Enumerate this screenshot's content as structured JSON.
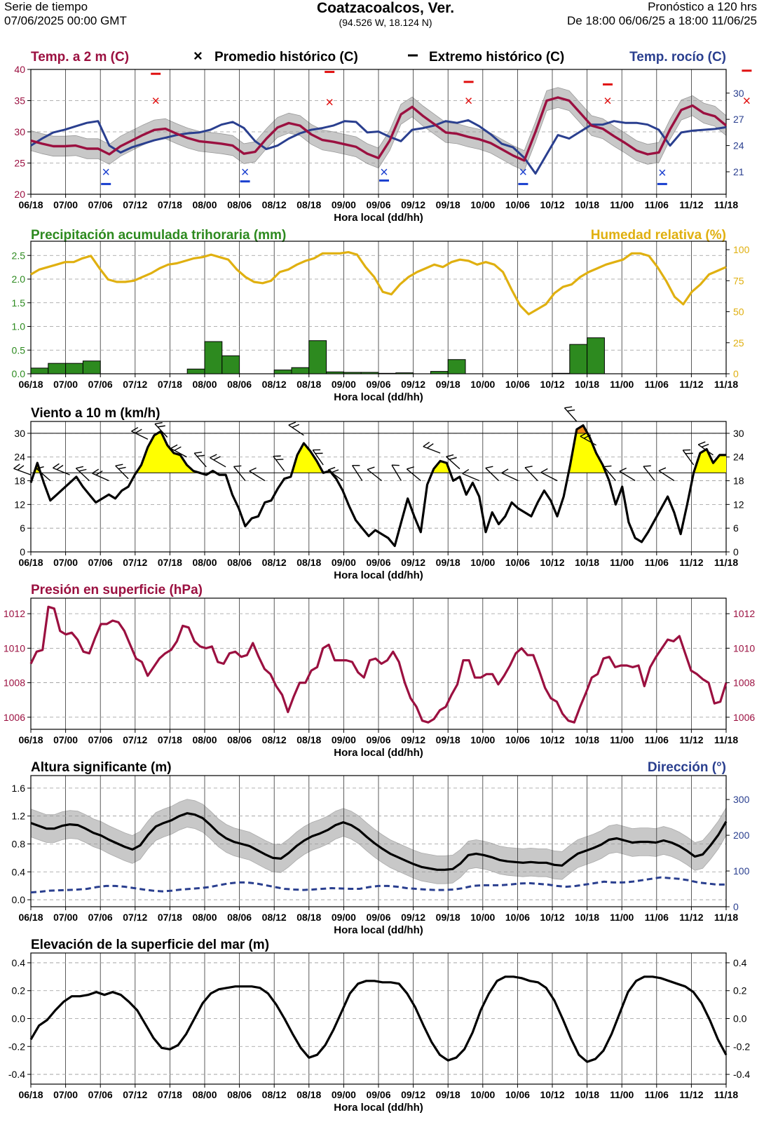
{
  "header": {
    "left_line1": "Serie de tiempo",
    "left_line2": "07/06/2025 00:00 GMT",
    "title": "Coatzacoalcos,  Ver.",
    "subtitle": "(94.526 W, 18.124 N)",
    "right_line1": "Pronóstico a 120 hrs",
    "right_line2": "De 18:00 06/06/25 a 18:00 11/06/25"
  },
  "x_axis": {
    "label": "Hora local (dd/hh)",
    "ticks": [
      "06/18",
      "07/00",
      "07/06",
      "07/12",
      "07/18",
      "08/00",
      "08/06",
      "08/12",
      "08/18",
      "09/00",
      "09/06",
      "09/12",
      "09/18",
      "10/00",
      "10/06",
      "10/12",
      "10/18",
      "11/00",
      "11/06",
      "11/12",
      "11/18"
    ]
  },
  "colors": {
    "temp": "#9b1040",
    "dew": "#2a3f8f",
    "rain": "#2d8a1f",
    "humidity": "#e0b010",
    "wind": "#000000",
    "wind_fill_yellow": "#ffff00",
    "wind_fill_orange": "#f08a1a",
    "pressure": "#9b1040",
    "wave": "#000000",
    "wave_dir": "#2a3f8f",
    "band": "#c8c8c8",
    "hist_max": "#e01010",
    "hist_min": "#1a3fcf"
  },
  "chart_data": [
    {
      "type": "line",
      "title": "Temp. a 2 m (C)",
      "legend": [
        "Promedio histórico (C)",
        "Extremo histórico (C)"
      ],
      "right_title": "Temp. rocío (C)",
      "ylim": [
        20,
        40
      ],
      "y_ticks": [
        "20",
        "25",
        "30",
        "35",
        "40"
      ],
      "y2lim": [
        18.43,
        32.71
      ],
      "y2_ticks": [
        "21",
        "24",
        "27",
        "30"
      ],
      "series": [
        {
          "name": "Temp. a 2 m (C)",
          "axis": "left",
          "values": [
            28.6,
            28.1,
            27.7,
            27.7,
            27.8,
            27.3,
            27.3,
            26.4,
            27.7,
            28.6,
            29.5,
            30.3,
            30.5,
            29.7,
            29.0,
            28.5,
            28.3,
            28.1,
            27.8,
            26.5,
            26.8,
            28.9,
            30.7,
            31.4,
            31.0,
            29.6,
            28.7,
            28.4,
            28.0,
            27.6,
            26.5,
            25.8,
            28.6,
            32.8,
            34.0,
            32.5,
            31.2,
            29.9,
            29.7,
            29.2,
            28.8,
            28.2,
            27.2,
            26.2,
            25.4,
            30.0,
            35.0,
            35.5,
            35.0,
            33.0,
            31.0,
            30.5,
            29.3,
            28.2,
            27.0,
            26.4,
            26.7,
            30.4,
            33.5,
            34.2,
            33.0,
            32.5,
            31.0
          ]
        },
        {
          "name": "Temp. rocío (C)",
          "axis": "right",
          "values": [
            24.0,
            24.8,
            25.5,
            25.8,
            26.2,
            26.6,
            26.8,
            24.0,
            23.2,
            23.8,
            24.2,
            24.6,
            24.9,
            25.2,
            25.4,
            25.5,
            25.8,
            26.4,
            26.7,
            26.0,
            24.5,
            23.6,
            24.0,
            24.8,
            25.4,
            25.8,
            26.0,
            26.3,
            26.8,
            26.7,
            25.5,
            25.6,
            25.0,
            24.5,
            25.8,
            26.0,
            26.3,
            26.8,
            26.6,
            26.9,
            26.2,
            25.3,
            24.2,
            23.8,
            22.6,
            20.8,
            23.0,
            25.2,
            24.8,
            25.6,
            26.4,
            26.4,
            26.8,
            26.6,
            26.6,
            26.4,
            25.8,
            24.0,
            25.5,
            25.7,
            25.8,
            25.9,
            26.1
          ]
        }
      ],
      "band_halfwidth": 1.6,
      "hist_avg_temp": [
        {
          "x": "07/06",
          "y": 35.0
        },
        {
          "x": "08/12",
          "y": 34.8
        },
        {
          "x": "09/12",
          "y": 35.0
        },
        {
          "x": "10/12",
          "y": 35.0
        },
        {
          "x": "11/12",
          "y": 35.0
        }
      ],
      "hist_max_temp": [
        {
          "x": "07/06",
          "y": 39.3
        },
        {
          "x": "08/12",
          "y": 39.6
        },
        {
          "x": "09/12",
          "y": 38.0
        },
        {
          "x": "10/12",
          "y": 37.6
        },
        {
          "x": "11/12",
          "y": 39.8
        }
      ],
      "hist_avg_dew": [
        {
          "x": "07/06",
          "y": 21.0
        },
        {
          "x": "08/06",
          "y": 21.0
        },
        {
          "x": "09/06",
          "y": 21.0
        },
        {
          "x": "10/06",
          "y": 21.0
        },
        {
          "x": "11/06",
          "y": 20.9
        }
      ],
      "hist_min_dew": [
        {
          "x": "07/06",
          "y": 19.6
        },
        {
          "x": "08/06",
          "y": 19.9
        },
        {
          "x": "09/06",
          "y": 20.0
        },
        {
          "x": "10/06",
          "y": 19.6
        },
        {
          "x": "11/06",
          "y": 19.6
        }
      ]
    },
    {
      "type": "bar",
      "title": "Precipitación acumulada trihoraria (mm)",
      "right_title": "Humedad relativa (%)",
      "ylim": [
        0,
        2.8
      ],
      "y_ticks": [
        "0.0",
        "0.5",
        "1.0",
        "1.5",
        "2.0",
        "2.5"
      ],
      "y2lim": [
        0,
        106.8
      ],
      "y2_ticks": [
        "0",
        "25",
        "50",
        "75",
        "100"
      ],
      "rain_values": [
        0.12,
        0.22,
        0.22,
        0.27,
        0,
        0,
        0,
        0,
        0,
        0.1,
        0.68,
        0.38,
        0,
        0,
        0.08,
        0.13,
        0.7,
        0.04,
        0.03,
        0.03,
        0.01,
        0.02,
        0,
        0.05,
        0.3,
        0,
        0,
        0,
        0,
        0,
        0.01,
        0.62,
        0.76,
        0,
        0,
        0,
        0,
        0,
        0,
        0
      ],
      "humidity_values": [
        80,
        84,
        86,
        88,
        90,
        90,
        93,
        95,
        85,
        76,
        74,
        74,
        75,
        78,
        81,
        85,
        88,
        89,
        91,
        93,
        94,
        96,
        94,
        92,
        84,
        78,
        74,
        73,
        75,
        82,
        84,
        88,
        91,
        93,
        97,
        97,
        97,
        98,
        96,
        86,
        78,
        66,
        64,
        72,
        78,
        82,
        85,
        88,
        86,
        90,
        92,
        91,
        88,
        90,
        88,
        82,
        68,
        55,
        48,
        52,
        56,
        65,
        70,
        72,
        78,
        82,
        85,
        88,
        90,
        92,
        97,
        97,
        95,
        86,
        75,
        62,
        56,
        66,
        72,
        80,
        83,
        86
      ]
    },
    {
      "type": "line",
      "title": "Viento a 10 m (km/h)",
      "ylim": [
        0,
        33
      ],
      "y_ticks": [
        "0",
        "6",
        "12",
        "18",
        "24",
        "30"
      ],
      "reference_lines": [
        20,
        30
      ],
      "values": [
        17.5,
        22.5,
        17.5,
        13,
        14.5,
        16,
        17.5,
        19,
        16.5,
        14.5,
        12.5,
        13.5,
        14.5,
        13.5,
        15.5,
        16.5,
        19.5,
        22,
        26.5,
        29.5,
        30.5,
        27,
        25,
        24.5,
        22,
        20.5,
        20,
        19.5,
        20.5,
        19.5,
        19.5,
        14.5,
        11,
        6.5,
        8.5,
        9,
        12.5,
        13,
        16,
        18.5,
        19,
        24.5,
        27.5,
        25.5,
        23,
        20,
        20.5,
        18.5,
        15.5,
        11.5,
        8,
        6,
        4,
        5.5,
        4.5,
        3.5,
        1.5,
        7.5,
        13.5,
        9,
        5,
        17,
        21,
        23,
        22.5,
        18,
        19,
        14.5,
        17.5,
        14,
        5,
        10,
        7,
        9,
        12.5,
        11,
        10,
        9,
        12.5,
        15.5,
        13,
        9,
        14,
        22,
        31,
        32,
        29,
        25,
        22,
        18,
        12,
        16.5,
        7.5,
        3.5,
        2.5,
        5,
        8,
        11,
        14,
        10,
        4.5,
        12,
        20,
        25,
        26,
        22.5,
        24.5,
        24.5
      ]
    },
    {
      "type": "line",
      "title": "Presión en superficie (hPa)",
      "ylim": [
        1005.3,
        1012.9
      ],
      "y_ticks": [
        "1006",
        "1008",
        "1010",
        "1012"
      ],
      "values": [
        1009.1,
        1009.8,
        1009.9,
        1012.4,
        1012.3,
        1011.0,
        1010.8,
        1010.9,
        1010.5,
        1009.8,
        1009.7,
        1010.6,
        1011.4,
        1011.4,
        1011.6,
        1011.5,
        1011.0,
        1010.2,
        1009.4,
        1009.2,
        1008.4,
        1008.9,
        1009.4,
        1009.7,
        1009.9,
        1010.4,
        1011.3,
        1011.2,
        1010.4,
        1010.1,
        1010.0,
        1010.1,
        1009.2,
        1009.1,
        1009.7,
        1009.8,
        1009.5,
        1009.6,
        1010.3,
        1009.5,
        1008.8,
        1008.5,
        1007.8,
        1007.3,
        1006.3,
        1007.2,
        1008.0,
        1008.0,
        1008.7,
        1008.9,
        1010.0,
        1010.2,
        1009.3,
        1009.3,
        1009.3,
        1009.2,
        1008.6,
        1008.3,
        1009.3,
        1009.4,
        1009.1,
        1009.3,
        1009.8,
        1009.2,
        1008.0,
        1007.1,
        1006.6,
        1005.8,
        1005.7,
        1005.9,
        1006.4,
        1006.6,
        1007.3,
        1007.9,
        1009.3,
        1009.3,
        1008.3,
        1008.3,
        1008.5,
        1008.5,
        1007.9,
        1008.4,
        1009.0,
        1009.7,
        1010.0,
        1009.6,
        1009.6,
        1008.7,
        1007.7,
        1007.1,
        1006.9,
        1006.2,
        1005.8,
        1005.7,
        1006.6,
        1007.4,
        1008.3,
        1008.5,
        1009.4,
        1009.5,
        1008.9,
        1009.0,
        1009.0,
        1008.9,
        1009.0,
        1007.8,
        1008.9,
        1009.5,
        1010.0,
        1010.5,
        1010.4,
        1010.7,
        1009.7,
        1008.7,
        1008.5,
        1008.2,
        1008.0,
        1006.8,
        1006.9,
        1008.0
      ]
    },
    {
      "type": "area",
      "title": "Altura significante (m)",
      "right_title": "Dirección (°)",
      "ylim": [
        -0.1,
        1.78
      ],
      "y_ticks": [
        "0.0",
        "0.4",
        "0.8",
        "1.2",
        "1.6"
      ],
      "y2lim": [
        0,
        367
      ],
      "y2_ticks": [
        "0",
        "100",
        "200",
        "300"
      ],
      "band_halfwidth": 0.2,
      "height_values": [
        1.1,
        1.06,
        1.02,
        1.02,
        1.06,
        1.08,
        1.07,
        1.02,
        0.96,
        0.92,
        0.86,
        0.81,
        0.76,
        0.72,
        0.78,
        0.93,
        1.05,
        1.1,
        1.14,
        1.2,
        1.24,
        1.22,
        1.17,
        1.07,
        0.96,
        0.88,
        0.83,
        0.8,
        0.77,
        0.71,
        0.65,
        0.6,
        0.59,
        0.67,
        0.77,
        0.85,
        0.91,
        0.95,
        1.0,
        1.07,
        1.11,
        1.07,
        1.0,
        0.9,
        0.81,
        0.73,
        0.66,
        0.61,
        0.56,
        0.51,
        0.47,
        0.45,
        0.43,
        0.43,
        0.44,
        0.52,
        0.64,
        0.66,
        0.64,
        0.61,
        0.57,
        0.55,
        0.54,
        0.53,
        0.54,
        0.53,
        0.53,
        0.5,
        0.49,
        0.58,
        0.66,
        0.7,
        0.74,
        0.79,
        0.86,
        0.88,
        0.85,
        0.82,
        0.83,
        0.83,
        0.82,
        0.85,
        0.82,
        0.77,
        0.7,
        0.62,
        0.65,
        0.78,
        0.93,
        1.12
      ],
      "direction_values": [
        40,
        42,
        45,
        46,
        47,
        48,
        50,
        55,
        58,
        58,
        56,
        52,
        48,
        45,
        43,
        45,
        48,
        50,
        52,
        55,
        60,
        65,
        68,
        68,
        65,
        60,
        55,
        50,
        48,
        47,
        48,
        50,
        52,
        51,
        50,
        50,
        55,
        58,
        58,
        56,
        52,
        50,
        48,
        47,
        47,
        48,
        52,
        58,
        60,
        60,
        60,
        62,
        65,
        66,
        64,
        62,
        58,
        56,
        58,
        62,
        66,
        70,
        68,
        68,
        70,
        74,
        78,
        82,
        80,
        78,
        74,
        68,
        65,
        62,
        62
      ]
    },
    {
      "type": "line",
      "title": "Elevación de la superficie del mar (m)",
      "ylim": [
        -0.47,
        0.47
      ],
      "y_ticks": [
        "-0.4",
        "-0.2",
        "0.0",
        "0.2",
        "0.4"
      ],
      "values": [
        -0.15,
        -0.05,
        -0.01,
        0.06,
        0.12,
        0.16,
        0.16,
        0.17,
        0.19,
        0.17,
        0.19,
        0.17,
        0.12,
        0.06,
        -0.04,
        -0.14,
        -0.21,
        -0.22,
        -0.19,
        -0.11,
        0.0,
        0.11,
        0.18,
        0.21,
        0.22,
        0.23,
        0.23,
        0.23,
        0.22,
        0.18,
        0.1,
        0.0,
        -0.11,
        -0.21,
        -0.28,
        -0.26,
        -0.19,
        -0.08,
        0.05,
        0.18,
        0.25,
        0.27,
        0.27,
        0.26,
        0.26,
        0.25,
        0.18,
        0.08,
        -0.05,
        -0.17,
        -0.26,
        -0.3,
        -0.28,
        -0.22,
        -0.1,
        0.06,
        0.18,
        0.27,
        0.3,
        0.3,
        0.29,
        0.27,
        0.26,
        0.22,
        0.13,
        0.0,
        -0.14,
        -0.26,
        -0.31,
        -0.29,
        -0.23,
        -0.11,
        0.04,
        0.19,
        0.27,
        0.3,
        0.3,
        0.29,
        0.27,
        0.25,
        0.23,
        0.19,
        0.11,
        -0.01,
        -0.15,
        -0.26
      ]
    }
  ]
}
